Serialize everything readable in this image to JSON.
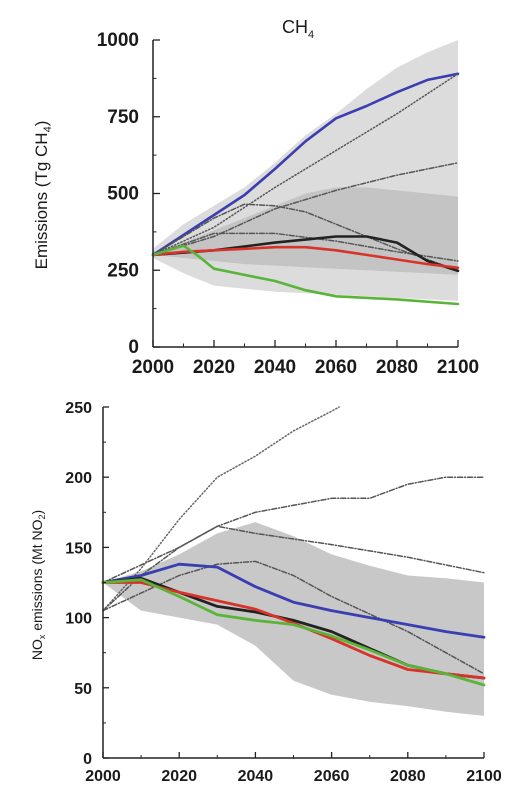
{
  "chart_data": [
    {
      "type": "line",
      "title": "CH",
      "title_sub": "4",
      "ylabel_main": "Emissions (Tg CH",
      "ylabel_sub": "4",
      "ylabel_end": ")",
      "xlabel": "",
      "xlim": [
        2000,
        2100
      ],
      "ylim": [
        0,
        1000
      ],
      "xticks": [
        "2000",
        "2020",
        "2040",
        "2060",
        "2080",
        "2100"
      ],
      "yticks": [
        "0",
        "250",
        "500",
        "750",
        "1000"
      ],
      "bands": [
        {
          "color": "#dcdcdc",
          "x": [
            2000,
            2010,
            2020,
            2030,
            2040,
            2050,
            2060,
            2070,
            2080,
            2090,
            2100
          ],
          "upper": [
            320,
            400,
            460,
            520,
            600,
            690,
            760,
            840,
            910,
            960,
            1000
          ],
          "lower": [
            290,
            240,
            200,
            190,
            180,
            175,
            170,
            165,
            160,
            155,
            150
          ]
        },
        {
          "color": "#c4c4c4",
          "x": [
            2000,
            2010,
            2020,
            2030,
            2040,
            2050,
            2060,
            2070,
            2080,
            2090,
            2100
          ],
          "upper": [
            310,
            340,
            380,
            420,
            460,
            500,
            520,
            520,
            510,
            500,
            490
          ],
          "lower": [
            300,
            290,
            280,
            270,
            265,
            260,
            255,
            250,
            245,
            240,
            235
          ]
        }
      ],
      "series": [
        {
          "color": "#3a3eb0",
          "style": "solid",
          "x": [
            2000,
            2010,
            2020,
            2030,
            2040,
            2050,
            2060,
            2070,
            2080,
            2090,
            2100
          ],
          "values": [
            300,
            365,
            430,
            495,
            580,
            670,
            745,
            785,
            830,
            870,
            890
          ]
        },
        {
          "color": "#555555",
          "style": "dotted",
          "x": [
            2000,
            2020,
            2040,
            2060,
            2080,
            2100
          ],
          "values": [
            300,
            390,
            520,
            640,
            760,
            890
          ]
        },
        {
          "color": "#555555",
          "style": "dashdot",
          "x": [
            2000,
            2020,
            2040,
            2060,
            2080,
            2100
          ],
          "values": [
            300,
            360,
            450,
            510,
            560,
            600
          ]
        },
        {
          "color": "#555555",
          "style": "dashdot",
          "x": [
            2000,
            2020,
            2030,
            2040,
            2050,
            2060,
            2080,
            2100
          ],
          "values": [
            300,
            420,
            465,
            460,
            440,
            400,
            320,
            250
          ]
        },
        {
          "color": "#555555",
          "style": "dashdot",
          "x": [
            2000,
            2020,
            2040,
            2060,
            2080,
            2100
          ],
          "values": [
            300,
            370,
            370,
            345,
            310,
            280
          ]
        },
        {
          "color": "#222222",
          "style": "solid",
          "x": [
            2000,
            2020,
            2040,
            2050,
            2060,
            2070,
            2080,
            2090,
            2100
          ],
          "values": [
            300,
            315,
            340,
            350,
            360,
            360,
            340,
            280,
            248
          ]
        },
        {
          "color": "#d8332a",
          "style": "solid",
          "x": [
            2000,
            2010,
            2020,
            2030,
            2040,
            2050,
            2060,
            2070,
            2080,
            2090,
            2100
          ],
          "values": [
            300,
            310,
            315,
            320,
            325,
            325,
            315,
            300,
            285,
            270,
            258
          ]
        },
        {
          "color": "#5ab43a",
          "style": "solid",
          "x": [
            2000,
            2010,
            2015,
            2020,
            2030,
            2040,
            2050,
            2060,
            2080,
            2100
          ],
          "values": [
            300,
            330,
            295,
            255,
            235,
            215,
            185,
            165,
            155,
            140
          ]
        }
      ]
    },
    {
      "type": "line",
      "title": "",
      "ylabel_main": "NO",
      "ylabel_sub1": "x",
      "ylabel_mid": " emissions (Mt NO",
      "ylabel_sub2": "2",
      "ylabel_end": ")",
      "xlabel": "",
      "xlim": [
        2000,
        2100
      ],
      "ylim": [
        0,
        250
      ],
      "xticks": [
        "2000",
        "2020",
        "2040",
        "2060",
        "2080",
        "2100"
      ],
      "yticks": [
        "0",
        "50",
        "100",
        "150",
        "200",
        "250"
      ],
      "bands": [
        {
          "color": "#c8c8c8",
          "x": [
            2000,
            2010,
            2020,
            2030,
            2040,
            2050,
            2060,
            2070,
            2080,
            2090,
            2100
          ],
          "upper": [
            125,
            133,
            145,
            160,
            168,
            158,
            145,
            137,
            130,
            128,
            125
          ],
          "lower": [
            125,
            105,
            100,
            95,
            80,
            55,
            45,
            40,
            37,
            33,
            30
          ]
        }
      ],
      "series": [
        {
          "color": "#666666",
          "style": "dotted",
          "x": [
            2000,
            2010,
            2020,
            2030,
            2040,
            2050,
            2060,
            2062
          ],
          "values": [
            105,
            135,
            170,
            200,
            215,
            233,
            247,
            250
          ]
        },
        {
          "color": "#555555",
          "style": "dashdot",
          "x": [
            2000,
            2010,
            2020,
            2030,
            2040,
            2050,
            2060,
            2070,
            2080,
            2090,
            2100
          ],
          "values": [
            105,
            130,
            150,
            165,
            175,
            180,
            185,
            185,
            195,
            200,
            200
          ]
        },
        {
          "color": "#555555",
          "style": "dashdot",
          "x": [
            2000,
            2020,
            2030,
            2040,
            2060,
            2080,
            2100
          ],
          "values": [
            125,
            150,
            165,
            160,
            152,
            143,
            132
          ]
        },
        {
          "color": "#555555",
          "style": "dashdot",
          "x": [
            2000,
            2020,
            2030,
            2040,
            2050,
            2060,
            2080,
            2100
          ],
          "values": [
            105,
            130,
            138,
            140,
            130,
            115,
            90,
            60
          ]
        },
        {
          "color": "#3a3eb0",
          "style": "solid",
          "x": [
            2000,
            2010,
            2020,
            2030,
            2040,
            2050,
            2060,
            2070,
            2080,
            2090,
            2100
          ],
          "values": [
            125,
            130,
            138,
            136,
            122,
            111,
            105,
            100,
            95,
            90,
            86
          ]
        },
        {
          "color": "#222222",
          "style": "solid",
          "x": [
            2000,
            2010,
            2020,
            2030,
            2040,
            2050,
            2060,
            2070,
            2080,
            2090,
            2100
          ],
          "values": [
            125,
            128,
            118,
            108,
            104,
            98,
            90,
            78,
            66,
            60,
            57
          ]
        },
        {
          "color": "#d8332a",
          "style": "solid",
          "x": [
            2000,
            2010,
            2020,
            2030,
            2040,
            2050,
            2060,
            2070,
            2080,
            2090,
            2100
          ],
          "values": [
            125,
            125,
            118,
            112,
            106,
            96,
            85,
            73,
            63,
            60,
            57
          ]
        },
        {
          "color": "#5ab43a",
          "style": "solid",
          "x": [
            2000,
            2010,
            2020,
            2030,
            2040,
            2050,
            2060,
            2070,
            2080,
            2090,
            2100
          ],
          "values": [
            125,
            127,
            115,
            102,
            98,
            95,
            87,
            77,
            66,
            60,
            52
          ]
        }
      ]
    }
  ]
}
